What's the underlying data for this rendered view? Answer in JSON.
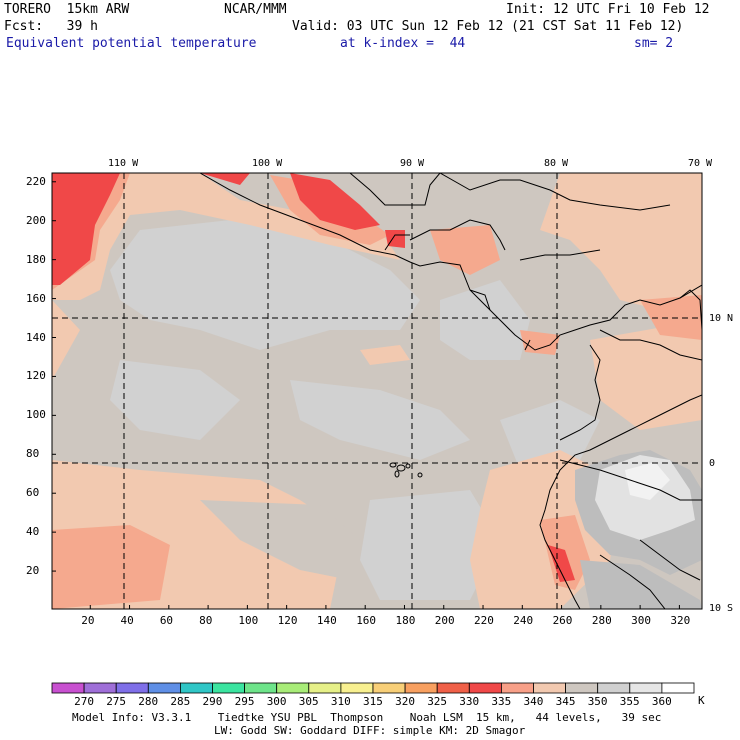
{
  "header": {
    "model": "TORERO  15km ARW",
    "center": "NCAR/MMM",
    "init": "Init: 12 UTC Fri 10 Feb 12",
    "forecast": "Fcst:   39 h",
    "valid": "Valid: 03 UTC Sun 12 Feb 12 (21 CST Sat 11 Feb 12)",
    "field": "Equivalent potential temperature",
    "level": "at k-index =  44",
    "smoothing": "sm= 2"
  },
  "map": {
    "lon_labels": [
      "110 W",
      "100 W",
      "90 W",
      "80 W",
      "70 W"
    ],
    "lat_labels": [
      "10 N",
      "0",
      "10 S"
    ],
    "y_ticks": [
      "220",
      "200",
      "180",
      "160",
      "140",
      "120",
      "100",
      "80",
      "60",
      "40",
      "20"
    ],
    "x_ticks": [
      "20",
      "40",
      "60",
      "80",
      "100",
      "120",
      "140",
      "160",
      "180",
      "200",
      "220",
      "240",
      "260",
      "280",
      "300",
      "320"
    ]
  },
  "colorbar": {
    "labels": [
      "270",
      "275",
      "280",
      "285",
      "290",
      "295",
      "300",
      "305",
      "310",
      "315",
      "320",
      "325",
      "330",
      "335",
      "340",
      "345",
      "350",
      "355",
      "360"
    ],
    "unit": "K",
    "colors": [
      "#c850d0",
      "#9f6fd8",
      "#7f6fe8",
      "#5f8fe6",
      "#30c6c6",
      "#3be4a0",
      "#6ee48a",
      "#a8ec78",
      "#e6f088",
      "#f8f090",
      "#f8cf78",
      "#f8a060",
      "#f06048",
      "#f04848",
      "#f8a088",
      "#f2c9b0",
      "#cec7c0",
      "#d0d0d0",
      "#e6e6e6",
      "#ffffff"
    ]
  },
  "footer": {
    "line1": "Model Info: V3.3.1    Tiedtke YSU PBL  Thompson    Noah LSM  15 km,   44 levels,   39 sec",
    "line2": "LW: Godd SW: Goddard DIFF: simple KM: 2D Smagor"
  }
}
